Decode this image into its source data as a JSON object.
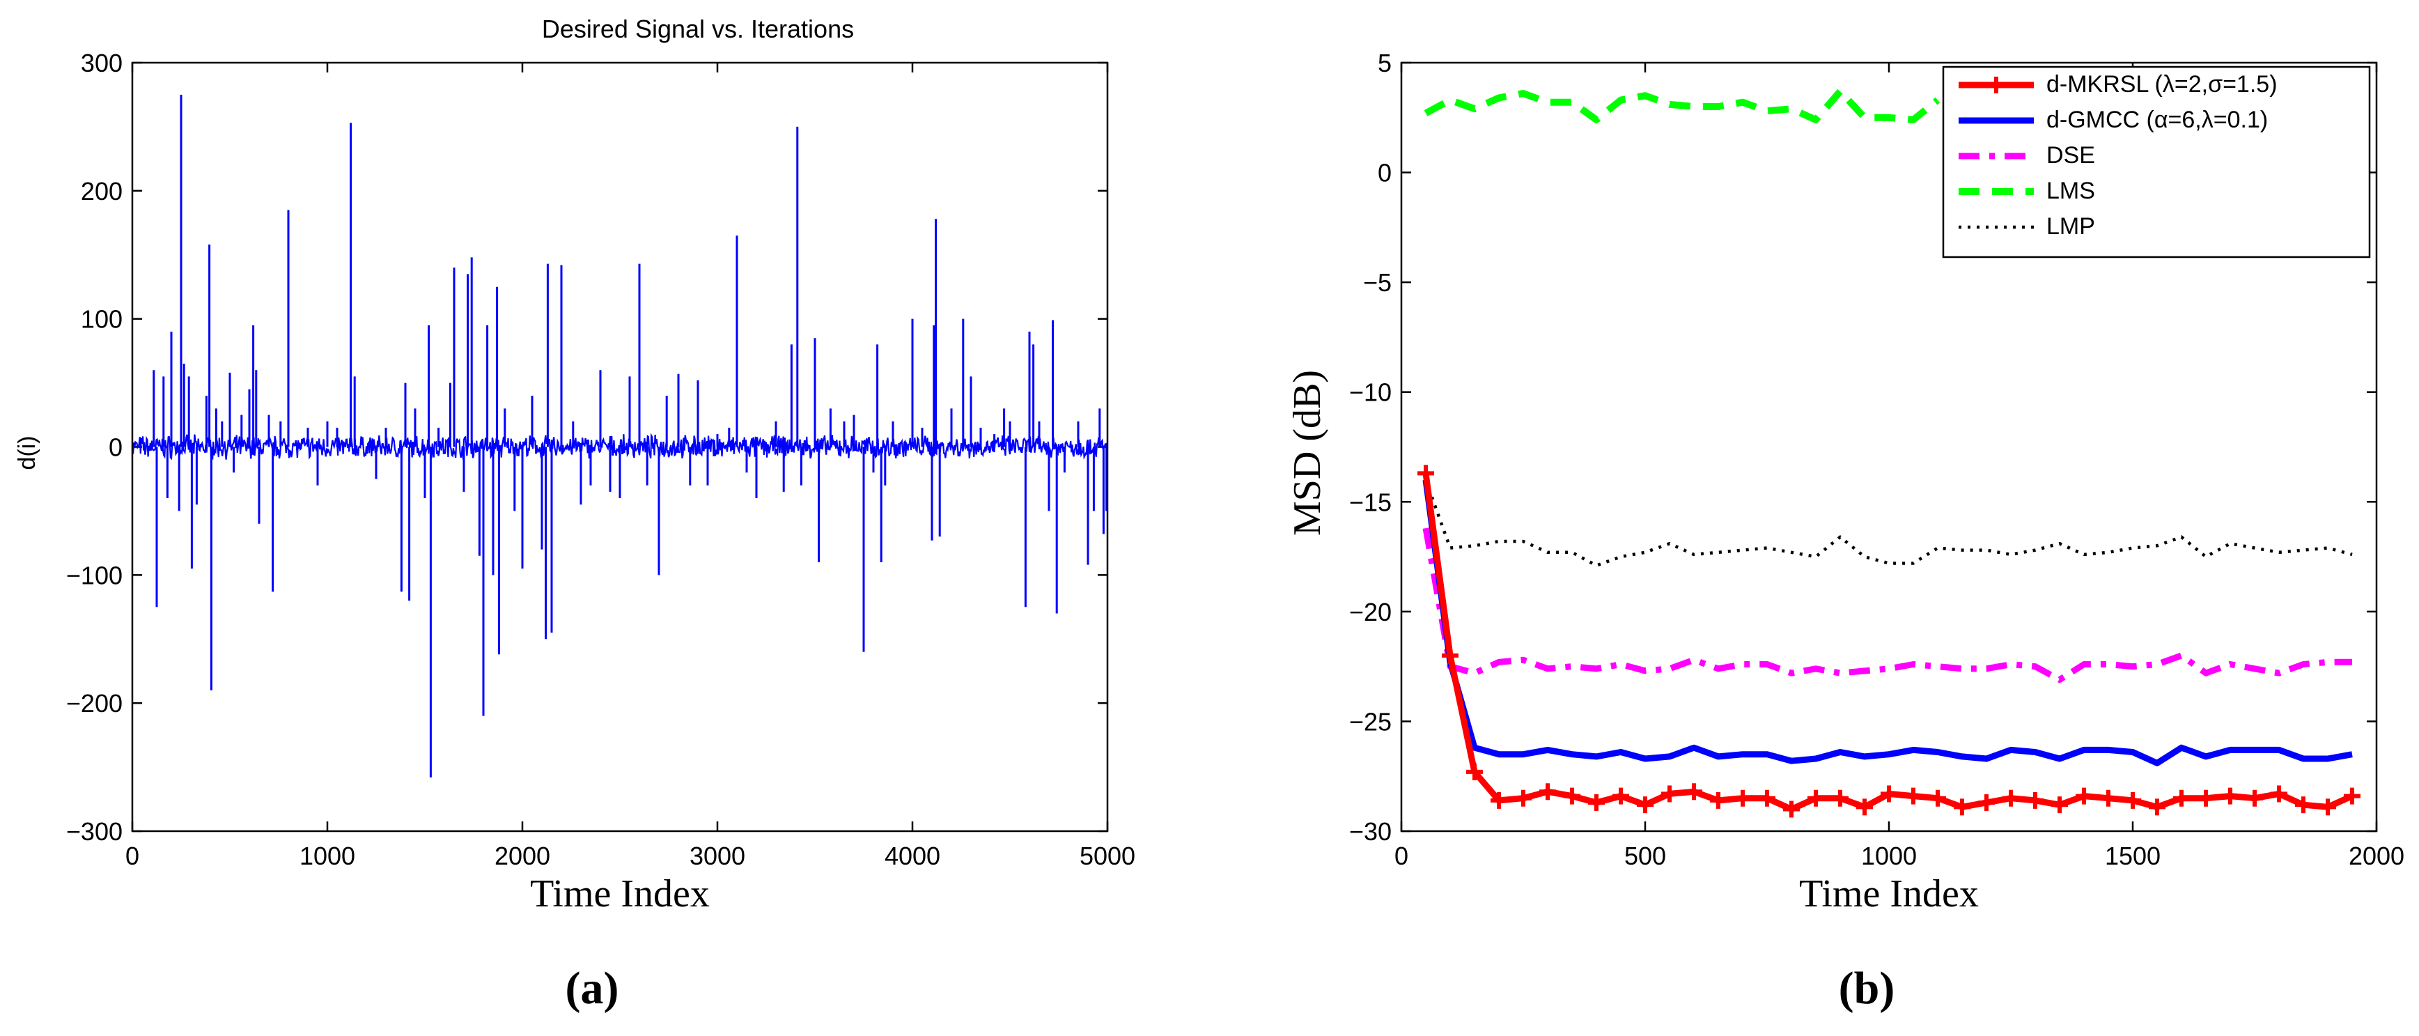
{
  "chart_data": [
    {
      "type": "line",
      "panel_label": "(a)",
      "title": "Desired Signal vs. Iterations",
      "xlabel": "Time Index",
      "ylabel": "d(i)",
      "xlim": [
        0,
        5000
      ],
      "ylim": [
        -300,
        300
      ],
      "xticks": [
        0,
        1000,
        2000,
        3000,
        4000,
        5000
      ],
      "yticks": [
        -300,
        -200,
        -100,
        0,
        100,
        200,
        300
      ],
      "series": [
        {
          "name": "d(i)",
          "color": "#0000ff",
          "spikes": [
            [
              110,
              60
            ],
            [
              125,
              -125
            ],
            [
              160,
              55
            ],
            [
              180,
              -40
            ],
            [
              200,
              90
            ],
            [
              240,
              -50
            ],
            [
              250,
              275
            ],
            [
              265,
              65
            ],
            [
              290,
              55
            ],
            [
              305,
              -95
            ],
            [
              330,
              -45
            ],
            [
              380,
              40
            ],
            [
              395,
              158
            ],
            [
              405,
              -190
            ],
            [
              430,
              30
            ],
            [
              460,
              20
            ],
            [
              500,
              58
            ],
            [
              520,
              -20
            ],
            [
              560,
              25
            ],
            [
              600,
              45
            ],
            [
              620,
              95
            ],
            [
              635,
              60
            ],
            [
              650,
              -60
            ],
            [
              700,
              25
            ],
            [
              720,
              -113
            ],
            [
              760,
              20
            ],
            [
              800,
              185
            ],
            [
              900,
              15
            ],
            [
              950,
              -30
            ],
            [
              1000,
              20
            ],
            [
              1050,
              15
            ],
            [
              1120,
              253
            ],
            [
              1140,
              55
            ],
            [
              1250,
              -25
            ],
            [
              1300,
              15
            ],
            [
              1380,
              -113
            ],
            [
              1400,
              50
            ],
            [
              1420,
              -120
            ],
            [
              1450,
              30
            ],
            [
              1500,
              -40
            ],
            [
              1520,
              95
            ],
            [
              1530,
              -258
            ],
            [
              1570,
              15
            ],
            [
              1630,
              50
            ],
            [
              1650,
              140
            ],
            [
              1700,
              -35
            ],
            [
              1720,
              135
            ],
            [
              1740,
              148
            ],
            [
              1780,
              -85
            ],
            [
              1800,
              -210
            ],
            [
              1820,
              95
            ],
            [
              1850,
              -100
            ],
            [
              1870,
              125
            ],
            [
              1880,
              -162
            ],
            [
              1910,
              30
            ],
            [
              1960,
              -50
            ],
            [
              2000,
              -95
            ],
            [
              2050,
              40
            ],
            [
              2100,
              -80
            ],
            [
              2120,
              -150
            ],
            [
              2130,
              143
            ],
            [
              2150,
              -145
            ],
            [
              2200,
              142
            ],
            [
              2260,
              20
            ],
            [
              2300,
              -45
            ],
            [
              2350,
              -30
            ],
            [
              2400,
              60
            ],
            [
              2450,
              -35
            ],
            [
              2500,
              -40
            ],
            [
              2550,
              55
            ],
            [
              2600,
              143
            ],
            [
              2640,
              -30
            ],
            [
              2700,
              -100
            ],
            [
              2740,
              40
            ],
            [
              2800,
              57
            ],
            [
              2860,
              -30
            ],
            [
              2900,
              52
            ],
            [
              2950,
              -30
            ],
            [
              3000,
              10
            ],
            [
              3060,
              15
            ],
            [
              3100,
              165
            ],
            [
              3150,
              -20
            ],
            [
              3200,
              -40
            ],
            [
              3300,
              20
            ],
            [
              3340,
              -35
            ],
            [
              3380,
              80
            ],
            [
              3410,
              250
            ],
            [
              3430,
              -30
            ],
            [
              3500,
              85
            ],
            [
              3520,
              -90
            ],
            [
              3580,
              30
            ],
            [
              3650,
              20
            ],
            [
              3700,
              25
            ],
            [
              3750,
              -160
            ],
            [
              3800,
              -20
            ],
            [
              3820,
              80
            ],
            [
              3840,
              -90
            ],
            [
              3860,
              -30
            ],
            [
              3900,
              20
            ],
            [
              4000,
              100
            ],
            [
              4050,
              15
            ],
            [
              4100,
              -73
            ],
            [
              4110,
              95
            ],
            [
              4120,
              178
            ],
            [
              4140,
              -70
            ],
            [
              4200,
              30
            ],
            [
              4260,
              100
            ],
            [
              4300,
              55
            ],
            [
              4350,
              15
            ],
            [
              4420,
              10
            ],
            [
              4470,
              30
            ],
            [
              4500,
              20
            ],
            [
              4580,
              -125
            ],
            [
              4600,
              90
            ],
            [
              4620,
              80
            ],
            [
              4650,
              20
            ],
            [
              4700,
              -50
            ],
            [
              4720,
              99
            ],
            [
              4740,
              -130
            ],
            [
              4780,
              -20
            ],
            [
              4850,
              20
            ],
            [
              4900,
              -92
            ],
            [
              4930,
              -50
            ],
            [
              4960,
              30
            ],
            [
              4980,
              -68
            ],
            [
              4995,
              -50
            ]
          ]
        }
      ]
    },
    {
      "type": "line",
      "panel_label": "(b)",
      "title": "",
      "xlabel": "Time Index",
      "ylabel": "MSD (dB)",
      "xlim": [
        0,
        2000
      ],
      "ylim": [
        -30,
        5
      ],
      "xticks": [
        0,
        500,
        1000,
        1500,
        2000
      ],
      "yticks": [
        -30,
        -25,
        -20,
        -15,
        -10,
        -5,
        0,
        5
      ],
      "legend_position": "top-right",
      "series": [
        {
          "name": "d-MKRSL (λ=2,σ=1.5)",
          "color": "#ff0000",
          "style": "solid-plus",
          "x": [
            50,
            100,
            150,
            200,
            250,
            300,
            350,
            400,
            450,
            500,
            550,
            600,
            650,
            700,
            750,
            800,
            850,
            900,
            950,
            1000,
            1050,
            1100,
            1150,
            1200,
            1250,
            1300,
            1350,
            1400,
            1450,
            1500,
            1550,
            1600,
            1650,
            1700,
            1750,
            1800,
            1850,
            1900,
            1950
          ],
          "y": [
            -13.7,
            -22.0,
            -27.3,
            -28.6,
            -28.5,
            -28.2,
            -28.4,
            -28.7,
            -28.4,
            -28.8,
            -28.3,
            -28.2,
            -28.6,
            -28.5,
            -28.5,
            -29.0,
            -28.5,
            -28.5,
            -28.9,
            -28.3,
            -28.4,
            -28.5,
            -28.9,
            -28.7,
            -28.5,
            -28.6,
            -28.8,
            -28.4,
            -28.5,
            -28.6,
            -28.9,
            -28.5,
            -28.5,
            -28.4,
            -28.5,
            -28.3,
            -28.8,
            -28.9,
            -28.4
          ]
        },
        {
          "name": "d-GMCC (α=6,λ=0.1)",
          "color": "#0000ff",
          "style": "solid",
          "x": [
            50,
            100,
            150,
            200,
            250,
            300,
            350,
            400,
            450,
            500,
            550,
            600,
            650,
            700,
            750,
            800,
            850,
            900,
            950,
            1000,
            1050,
            1100,
            1150,
            1200,
            1250,
            1300,
            1350,
            1400,
            1450,
            1500,
            1550,
            1600,
            1650,
            1700,
            1750,
            1800,
            1850,
            1900,
            1950
          ],
          "y": [
            -14.0,
            -22.3,
            -26.2,
            -26.5,
            -26.5,
            -26.3,
            -26.5,
            -26.6,
            -26.4,
            -26.7,
            -26.6,
            -26.2,
            -26.6,
            -26.5,
            -26.5,
            -26.8,
            -26.7,
            -26.4,
            -26.6,
            -26.5,
            -26.3,
            -26.4,
            -26.6,
            -26.7,
            -26.3,
            -26.4,
            -26.7,
            -26.3,
            -26.3,
            -26.4,
            -26.9,
            -26.2,
            -26.6,
            -26.3,
            -26.3,
            -26.3,
            -26.7,
            -26.7,
            -26.5
          ]
        },
        {
          "name": "DSE",
          "color": "#ff00ff",
          "style": "dashdot",
          "x": [
            50,
            100,
            150,
            200,
            250,
            300,
            350,
            400,
            450,
            500,
            550,
            600,
            650,
            700,
            750,
            800,
            850,
            900,
            950,
            1000,
            1050,
            1100,
            1150,
            1200,
            1250,
            1300,
            1350,
            1400,
            1450,
            1500,
            1550,
            1600,
            1650,
            1700,
            1750,
            1800,
            1850,
            1900,
            1950
          ],
          "y": [
            -16.2,
            -22.5,
            -22.8,
            -22.3,
            -22.2,
            -22.6,
            -22.5,
            -22.6,
            -22.4,
            -22.7,
            -22.6,
            -22.2,
            -22.6,
            -22.4,
            -22.4,
            -22.8,
            -22.6,
            -22.8,
            -22.7,
            -22.6,
            -22.4,
            -22.5,
            -22.6,
            -22.6,
            -22.4,
            -22.5,
            -23.1,
            -22.4,
            -22.4,
            -22.5,
            -22.4,
            -22.0,
            -22.8,
            -22.4,
            -22.6,
            -22.8,
            -22.4,
            -22.3,
            -22.3
          ]
        },
        {
          "name": "LMS",
          "color": "#00ff00",
          "style": "dashed",
          "x": [
            50,
            100,
            150,
            200,
            250,
            300,
            350,
            400,
            450,
            500,
            550,
            600,
            650,
            700,
            750,
            800,
            850,
            900,
            950,
            1000,
            1050,
            1100
          ],
          "y": [
            2.7,
            3.3,
            2.9,
            3.4,
            3.6,
            3.2,
            3.2,
            2.4,
            3.3,
            3.5,
            3.1,
            3.0,
            3.0,
            3.2,
            2.8,
            2.9,
            2.4,
            3.7,
            2.5,
            2.5,
            2.4,
            3.3
          ]
        },
        {
          "name": "LMP",
          "color": "#000000",
          "style": "dotted",
          "x": [
            50,
            100,
            150,
            200,
            250,
            300,
            350,
            400,
            450,
            500,
            550,
            600,
            650,
            700,
            750,
            800,
            850,
            900,
            950,
            1000,
            1050,
            1100,
            1150,
            1200,
            1250,
            1300,
            1350,
            1400,
            1450,
            1500,
            1550,
            1600,
            1650,
            1700,
            1750,
            1800,
            1850,
            1900,
            1950
          ],
          "y": [
            -14.0,
            -17.1,
            -17.0,
            -16.8,
            -16.8,
            -17.3,
            -17.3,
            -17.9,
            -17.5,
            -17.3,
            -16.9,
            -17.4,
            -17.3,
            -17.2,
            -17.1,
            -17.3,
            -17.5,
            -16.6,
            -17.5,
            -17.8,
            -17.8,
            -17.1,
            -17.2,
            -17.2,
            -17.4,
            -17.2,
            -16.9,
            -17.4,
            -17.3,
            -17.1,
            -17.0,
            -16.6,
            -17.5,
            -16.9,
            -17.1,
            -17.3,
            -17.2,
            -17.1,
            -17.4
          ]
        }
      ]
    }
  ]
}
